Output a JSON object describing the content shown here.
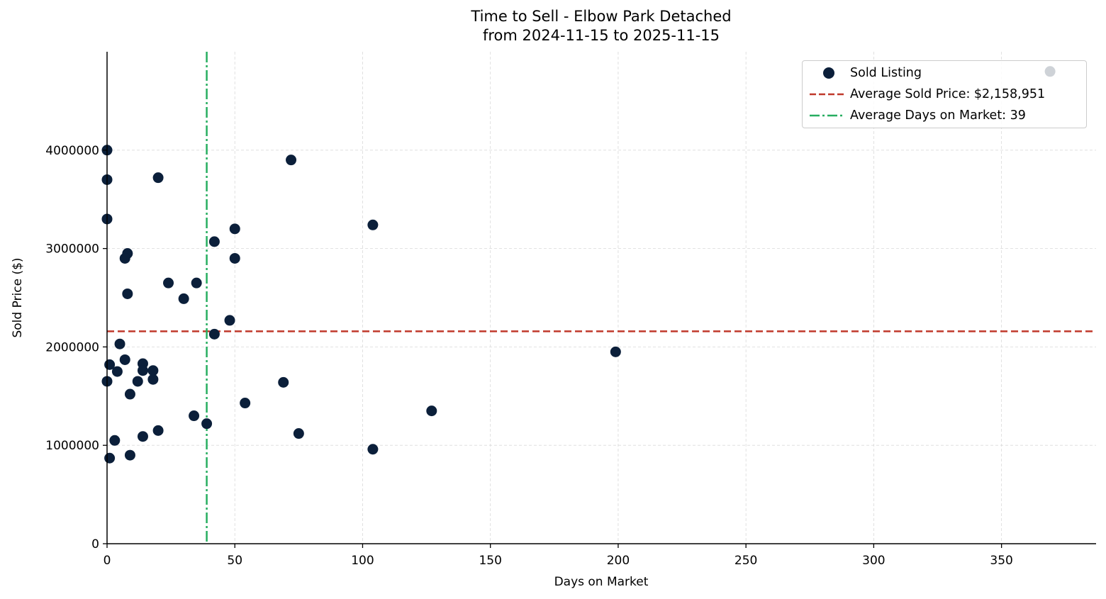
{
  "title_line1": "Time to Sell - Elbow Park Detached",
  "title_line2": "from 2024-11-15 to 2025-11-15",
  "legend": {
    "sold": "Sold Listing",
    "avg_price": "Average Sold Price: $2,158,951",
    "avg_days": "Average Days on Market: 39"
  },
  "colors": {
    "points": "#0b1f3a",
    "avg_price_line": "#c0392b",
    "avg_days_line": "#27ae60",
    "grid": "#d9d9d9"
  },
  "chart_data": {
    "type": "scatter",
    "title": "Time to Sell - Elbow Park Detached\nfrom 2024-11-15 to 2025-11-15",
    "xlabel": "Days on Market",
    "ylabel": "Sold Price ($)",
    "xlim": [
      0,
      387
    ],
    "ylim": [
      0,
      5000000
    ],
    "xticks": [
      0,
      50,
      100,
      150,
      200,
      250,
      300,
      350
    ],
    "yticks": [
      0,
      1000000,
      2000000,
      3000000,
      4000000
    ],
    "grid": true,
    "legend_position": "upper right",
    "series": [
      {
        "name": "Sold Listing",
        "points": [
          [
            0,
            4000000
          ],
          [
            0,
            3700000
          ],
          [
            0,
            3300000
          ],
          [
            20,
            3720000
          ],
          [
            8,
            2950000
          ],
          [
            7,
            2900000
          ],
          [
            8,
            2540000
          ],
          [
            24,
            2650000
          ],
          [
            30,
            2490000
          ],
          [
            35,
            2650000
          ],
          [
            42,
            3070000
          ],
          [
            50,
            3200000
          ],
          [
            50,
            2900000
          ],
          [
            48,
            2270000
          ],
          [
            42,
            2130000
          ],
          [
            72,
            3900000
          ],
          [
            104,
            3240000
          ],
          [
            5,
            2030000
          ],
          [
            1,
            1820000
          ],
          [
            7,
            1870000
          ],
          [
            4,
            1750000
          ],
          [
            14,
            1830000
          ],
          [
            14,
            1760000
          ],
          [
            18,
            1760000
          ],
          [
            18,
            1670000
          ],
          [
            12,
            1650000
          ],
          [
            0,
            1650000
          ],
          [
            9,
            1520000
          ],
          [
            3,
            1050000
          ],
          [
            1,
            870000
          ],
          [
            9,
            900000
          ],
          [
            14,
            1090000
          ],
          [
            20,
            1150000
          ],
          [
            34,
            1300000
          ],
          [
            39,
            1220000
          ],
          [
            54,
            1430000
          ],
          [
            69,
            1640000
          ],
          [
            75,
            1120000
          ],
          [
            104,
            960000
          ],
          [
            127,
            1350000
          ],
          [
            199,
            1950000
          ],
          [
            369,
            4800000
          ]
        ]
      }
    ],
    "reference_lines": [
      {
        "name": "Average Sold Price: $2,158,951",
        "orientation": "horizontal",
        "value": 2158951,
        "style": "dashed"
      },
      {
        "name": "Average Days on Market: 39",
        "orientation": "vertical",
        "value": 39,
        "style": "dashdot"
      }
    ]
  }
}
